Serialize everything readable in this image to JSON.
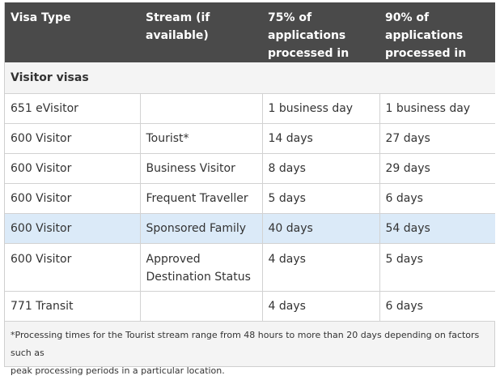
{
  "table": {
    "headers": [
      {
        "line1": "Visa Type",
        "line2": "",
        "line3": ""
      },
      {
        "line1": "Stream (if",
        "line2": "available)",
        "line3": ""
      },
      {
        "line1": "75% of",
        "line2": "applications",
        "line3": "processed in"
      },
      {
        "line1": "90% of",
        "line2": "applications",
        "line3": "processed in"
      }
    ],
    "section_title": "Visitor visas",
    "rows": [
      {
        "visa": "651 eVisitor",
        "stream": "",
        "stream2": "",
        "p75": "1 business day",
        "p90": "1 business day"
      },
      {
        "visa": "600 Visitor",
        "stream": "Tourist*",
        "stream2": "",
        "p75": "14 days",
        "p90": "27 days"
      },
      {
        "visa": "600 Visitor",
        "stream": "Business Visitor",
        "stream2": "",
        "p75": "8 days",
        "p90": "29 days"
      },
      {
        "visa": "600 Visitor",
        "stream": "Frequent Traveller",
        "stream2": "",
        "p75": "5 days",
        "p90": "6 days"
      },
      {
        "visa": "600 Visitor",
        "stream": "Sponsored Family",
        "stream2": "",
        "p75": "40 days",
        "p90": "54 days"
      },
      {
        "visa": "600 Visitor",
        "stream": "Approved",
        "stream2": "Destination Status",
        "p75": "4 days",
        "p90": "5 days"
      },
      {
        "visa": "771 Transit",
        "stream": "",
        "stream2": "",
        "p75": "4 days",
        "p90": "6 days"
      }
    ],
    "highlight_color": "#dbeaf8",
    "header_color": "#4a4a4a"
  },
  "footnote": {
    "line1": "*Processing times for the Tourist stream range from 48 hours to more than 20 days depending on factors such as",
    "line2": "peak processing periods in a particular location."
  }
}
